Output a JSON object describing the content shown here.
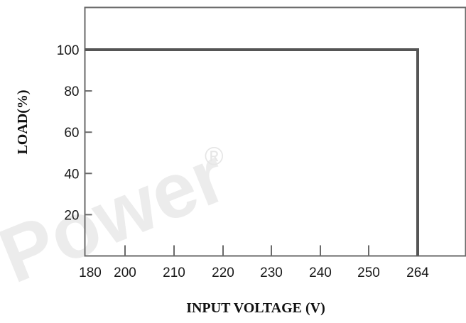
{
  "chart_data": {
    "type": "line",
    "title": "",
    "xlabel": "INPUT VOLTAGE (V)",
    "ylabel": "LOAD(%)",
    "x_ticks": [
      180,
      200,
      210,
      220,
      230,
      240,
      250,
      264
    ],
    "y_ticks": [
      20,
      40,
      60,
      80,
      100
    ],
    "xlim": [
      180,
      272
    ],
    "ylim": [
      0,
      118
    ],
    "grid": false,
    "legend": "none",
    "series": [
      {
        "x": [
          180,
          264,
          264
        ],
        "y": [
          100,
          100,
          0
        ],
        "color": "#555555"
      }
    ],
    "watermark": {
      "text": "Power",
      "mark": "®"
    }
  }
}
